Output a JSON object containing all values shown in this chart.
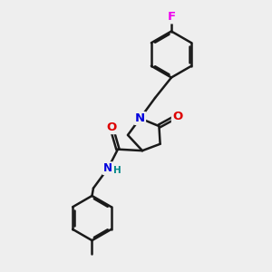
{
  "bg_color": "#eeeeee",
  "bond_color": "#1a1a1a",
  "bond_width": 1.8,
  "atom_colors": {
    "F": "#ee00ee",
    "N": "#0000dd",
    "O": "#dd0000",
    "H": "#008888",
    "C": "#1a1a1a"
  },
  "font_size": 8.5,
  "fig_size": [
    3.0,
    3.0
  ],
  "dpi": 100,
  "xlim": [
    0,
    10
  ],
  "ylim": [
    0,
    10
  ]
}
